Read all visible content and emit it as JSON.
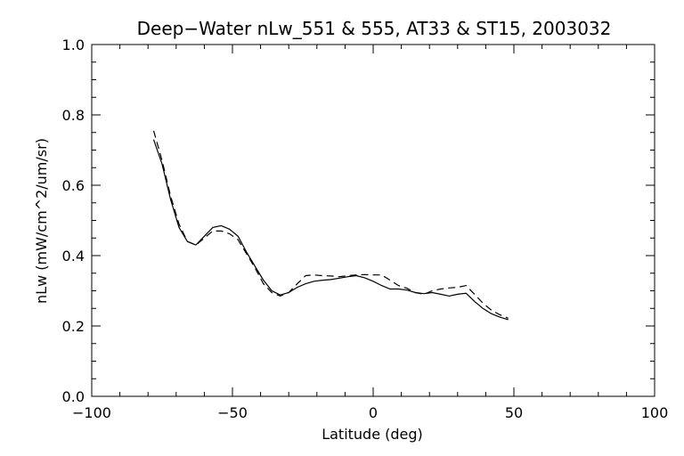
{
  "chart_data": {
    "type": "line",
    "title": "Deep−Water nLw_551 & 555, AT33 & ST15, 2003032",
    "xlabel": "Latitude (deg)",
    "ylabel": "nLw (mW/cm^2/um/sr)",
    "xlim": [
      -100,
      100
    ],
    "ylim": [
      0.0,
      1.0
    ],
    "xticks": [
      -100,
      -50,
      0,
      50,
      100
    ],
    "xtick_labels": [
      "−100",
      "−50",
      "0",
      "50",
      "100"
    ],
    "yticks": [
      0.0,
      0.2,
      0.4,
      0.6,
      0.8,
      1.0
    ],
    "ytick_labels": [
      "0.0",
      "0.2",
      "0.4",
      "0.6",
      "0.8",
      "1.0"
    ],
    "x_minor_step": 10,
    "y_minor_step": 0.05,
    "grid": false,
    "series": [
      {
        "style": "solid",
        "x": [
          -78,
          -75,
          -72,
          -69,
          -66,
          -63,
          -60,
          -57,
          -54,
          -51,
          -48,
          -45,
          -42,
          -39,
          -36,
          -33,
          -30,
          -27,
          -24,
          -21,
          -18,
          -15,
          -12,
          -9,
          -6,
          -3,
          0,
          3,
          6,
          9,
          12,
          15,
          18,
          21,
          24,
          27,
          30,
          33,
          36,
          39,
          42,
          45,
          48
        ],
        "y": [
          0.73,
          0.66,
          0.56,
          0.48,
          0.44,
          0.43,
          0.455,
          0.48,
          0.485,
          0.475,
          0.455,
          0.41,
          0.37,
          0.33,
          0.3,
          0.288,
          0.295,
          0.31,
          0.32,
          0.327,
          0.33,
          0.332,
          0.336,
          0.34,
          0.343,
          0.337,
          0.327,
          0.315,
          0.305,
          0.305,
          0.302,
          0.295,
          0.292,
          0.295,
          0.29,
          0.285,
          0.29,
          0.293,
          0.27,
          0.25,
          0.235,
          0.225,
          0.218
        ]
      },
      {
        "style": "dashed",
        "x": [
          -78,
          -75,
          -72,
          -69,
          -66,
          -63,
          -60,
          -57,
          -54,
          -51,
          -48,
          -45,
          -42,
          -39,
          -36,
          -33,
          -30,
          -27,
          -24,
          -21,
          -18,
          -15,
          -12,
          -9,
          -6,
          -3,
          0,
          3,
          6,
          9,
          12,
          15,
          18,
          21,
          24,
          27,
          30,
          33,
          36,
          39,
          42,
          45,
          48
        ],
        "y": [
          0.755,
          0.67,
          0.57,
          0.49,
          0.44,
          0.43,
          0.45,
          0.47,
          0.47,
          0.462,
          0.445,
          0.405,
          0.365,
          0.32,
          0.295,
          0.285,
          0.295,
          0.32,
          0.343,
          0.345,
          0.343,
          0.342,
          0.34,
          0.343,
          0.345,
          0.346,
          0.345,
          0.345,
          0.33,
          0.315,
          0.307,
          0.295,
          0.29,
          0.3,
          0.305,
          0.308,
          0.31,
          0.315,
          0.29,
          0.265,
          0.245,
          0.232,
          0.222
        ]
      }
    ]
  }
}
